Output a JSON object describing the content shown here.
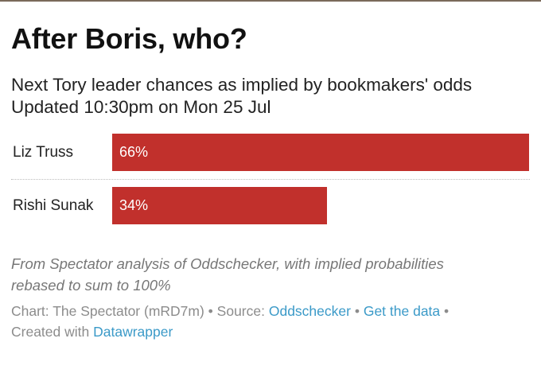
{
  "title": "After Boris, who?",
  "subtitle_lines": [
    "Next Tory leader chances as implied by bookmakers' odds",
    "Updated 10:30pm on Mon 25 Jul"
  ],
  "chart_data": {
    "type": "bar",
    "orientation": "horizontal",
    "categories": [
      "Liz Truss",
      "Rishi Sunak"
    ],
    "values": [
      66,
      34
    ],
    "value_labels": [
      "66%",
      "34%"
    ],
    "unit": "%",
    "xlim": [
      0,
      66
    ],
    "grid": false,
    "bar_color": "#c1302c"
  },
  "note_lines": [
    "From Spectator analysis of Oddschecker, with implied probabilities",
    "rebased to sum to 100%"
  ],
  "footer": {
    "chart_credit": "Chart: The Spectator (mRD7m)",
    "sep1": " • ",
    "source_label": "Source: ",
    "source_link": "Oddschecker",
    "sep2": " • ",
    "data_link": "Get the data",
    "sep3": " •",
    "created_label": "Created with ",
    "created_link": "Datawrapper"
  },
  "colors": {
    "bar": "#c1302c",
    "link": "#3b9ac8"
  }
}
